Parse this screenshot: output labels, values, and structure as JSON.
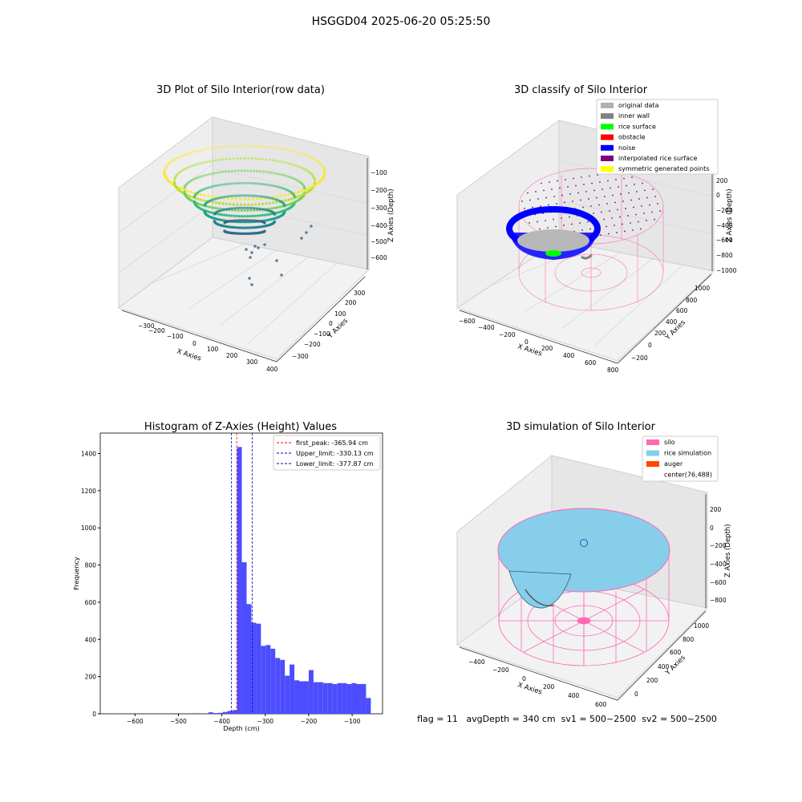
{
  "figure": {
    "suptitle": "HSGGD04 2025-06-20 05:25:50",
    "footer": "flag = 11   avgDepth = 340 cm  sv1 = 500~2500  sv2 = 500~2500"
  },
  "colors": {
    "histogram_bar": "#4d4dff",
    "first_peak_line": "#ff0000",
    "limit_lines": "#0000cc",
    "original": "#b0b0b0",
    "inner_wall": "#808080",
    "rice_surface": "#00ff00",
    "obstacle": "#ff0000",
    "noise": "#0000ff",
    "interpolated": "#800080",
    "symmetric": "#ffff00",
    "silo": "#ff69b4",
    "rice_simulation": "#87ceeb",
    "auger": "#ff4500"
  },
  "chart_data": [
    {
      "type": "scatter",
      "title": "3D Plot of Silo Interior(row data)",
      "xlabel": "X Axies",
      "ylabel": "Y Axies",
      "zlabel": "Z Axies (Depth)",
      "x_ticks": [
        "−300",
        "−200",
        "−100",
        "0",
        "100",
        "200",
        "300",
        "400"
      ],
      "y_ticks": [
        "−300",
        "−200",
        "−100",
        "0",
        "100",
        "200",
        "300"
      ],
      "z_ticks": [
        "−100",
        "−200",
        "−300",
        "−400",
        "−500",
        "−600"
      ],
      "x_range": [
        -350,
        400
      ],
      "y_range": [
        -350,
        350
      ],
      "z_range": [
        -700,
        -50
      ],
      "colormap": "viridis by depth",
      "description_shape": "bowl"
    },
    {
      "type": "scatter",
      "title": "3D classify of Silo Interior",
      "xlabel": "X Axies",
      "ylabel": "Y Axies",
      "zlabel": "Z Axies (Depth)",
      "x_ticks": [
        "−600",
        "−400",
        "−200",
        "0",
        "200",
        "400",
        "600",
        "800"
      ],
      "y_ticks": [
        "−200",
        "0",
        "200",
        "400",
        "600",
        "800",
        "1000"
      ],
      "z_ticks": [
        "200",
        "0",
        "−200",
        "−400",
        "−600",
        "−800",
        "−1000"
      ],
      "legend_position": "top-right",
      "legend": [
        {
          "label": "original data",
          "color": "#b0b0b0"
        },
        {
          "label": "inner wall",
          "color": "#808080"
        },
        {
          "label": "rice surface",
          "color": "#00ff00"
        },
        {
          "label": "obstacle",
          "color": "#ff0000"
        },
        {
          "label": "noise",
          "color": "#0000ff"
        },
        {
          "label": "interpolated rice surface",
          "color": "#800080"
        },
        {
          "label": "symmetric generated points",
          "color": "#ffff00"
        }
      ]
    },
    {
      "type": "bar",
      "title": "Histogram of Z-Axies (Height) Values",
      "xlabel": "Depth (cm)",
      "ylabel": "Frequency",
      "xlim": [
        -680,
        -30
      ],
      "ylim": [
        0,
        1510
      ],
      "x_ticks": [
        -600,
        -500,
        -400,
        -300,
        -200,
        -100
      ],
      "x_tick_labels": [
        "−600",
        "−500",
        "−400",
        "−300",
        "−200",
        "−100"
      ],
      "y_ticks": [
        0,
        200,
        400,
        600,
        800,
        1000,
        1200,
        1400
      ],
      "bin_width": 11,
      "bins": [
        {
          "start": -651,
          "value": 1
        },
        {
          "start": -464,
          "value": 3
        },
        {
          "start": -431,
          "value": 8
        },
        {
          "start": -420,
          "value": 4
        },
        {
          "start": -409,
          "value": 5
        },
        {
          "start": -398,
          "value": 10
        },
        {
          "start": -387,
          "value": 15
        },
        {
          "start": -376,
          "value": 20
        },
        {
          "start": -365,
          "value": 1435
        },
        {
          "start": -354,
          "value": 815
        },
        {
          "start": -343,
          "value": 590
        },
        {
          "start": -332,
          "value": 490
        },
        {
          "start": -321,
          "value": 485
        },
        {
          "start": -310,
          "value": 365
        },
        {
          "start": -299,
          "value": 370
        },
        {
          "start": -288,
          "value": 350
        },
        {
          "start": -277,
          "value": 300
        },
        {
          "start": -266,
          "value": 290
        },
        {
          "start": -255,
          "value": 205
        },
        {
          "start": -244,
          "value": 265
        },
        {
          "start": -233,
          "value": 180
        },
        {
          "start": -222,
          "value": 175
        },
        {
          "start": -211,
          "value": 175
        },
        {
          "start": -200,
          "value": 235
        },
        {
          "start": -189,
          "value": 170
        },
        {
          "start": -178,
          "value": 170
        },
        {
          "start": -167,
          "value": 165
        },
        {
          "start": -156,
          "value": 165
        },
        {
          "start": -145,
          "value": 160
        },
        {
          "start": -134,
          "value": 165
        },
        {
          "start": -123,
          "value": 165
        },
        {
          "start": -112,
          "value": 160
        },
        {
          "start": -101,
          "value": 165
        },
        {
          "start": -90,
          "value": 160
        },
        {
          "start": -79,
          "value": 160
        },
        {
          "start": -68,
          "value": 85
        }
      ],
      "vlines": [
        {
          "label": "first_peak: -365.94 cm",
          "x": -365.94,
          "color": "#ff0000"
        },
        {
          "label": "Upper_limit: -330.13 cm",
          "x": -330.13,
          "color": "#0000cc"
        },
        {
          "label": "Lower_limit: -377.87 cm",
          "x": -377.87,
          "color": "#0000cc"
        }
      ],
      "legend_position": "top-right"
    },
    {
      "type": "surface",
      "title": "3D simulation of Silo Interior",
      "xlabel": "X Axies",
      "ylabel": "Y Axies",
      "zlabel": "Z Axies (Depth)",
      "x_ticks": [
        "−400",
        "−200",
        "0",
        "200",
        "400",
        "600"
      ],
      "y_ticks": [
        "0",
        "200",
        "400",
        "600",
        "800",
        "1000"
      ],
      "z_ticks": [
        "200",
        "0",
        "−200",
        "−400",
        "−600",
        "−800"
      ],
      "legend_position": "top-right",
      "legend": [
        {
          "label": "silo",
          "color": "#ff69b4"
        },
        {
          "label": "rice simulation",
          "color": "#87ceeb"
        },
        {
          "label": "auger",
          "color": "#ff4500"
        },
        {
          "label": "center(76,488)",
          "color": ""
        }
      ]
    }
  ]
}
